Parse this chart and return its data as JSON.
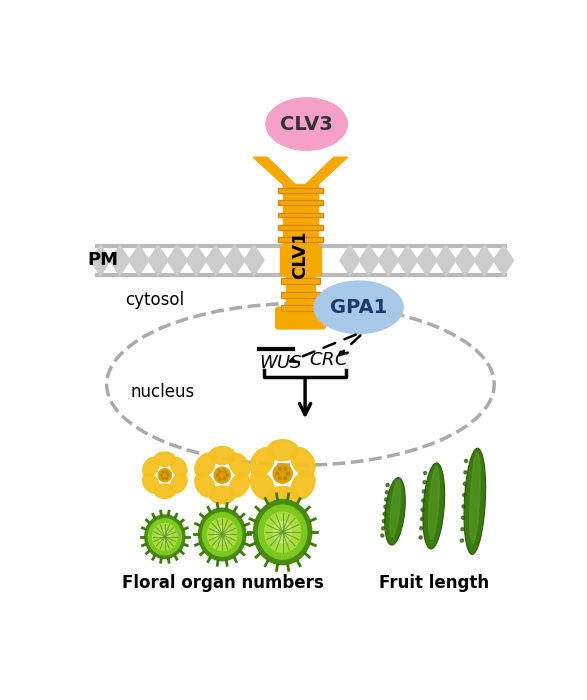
{
  "bg_color": "#ffffff",
  "clv1_color": "#F5A800",
  "clv3_color": "#F5A0C8",
  "gpa1_color": "#A8C8E8",
  "mem_color": "#cccccc",
  "diamond_color": "#cccccc",
  "clv3_label": "CLV3",
  "clv1_label": "CLV1",
  "gpa1_label": "GPA1",
  "pm_label": "PM",
  "cytosol_label": "cytosol",
  "nucleus_label": "nucleus",
  "wus_label": "WUS",
  "crc_label": "CRC",
  "floral_label": "Floral organ numbers",
  "fruit_label": "Fruit length"
}
